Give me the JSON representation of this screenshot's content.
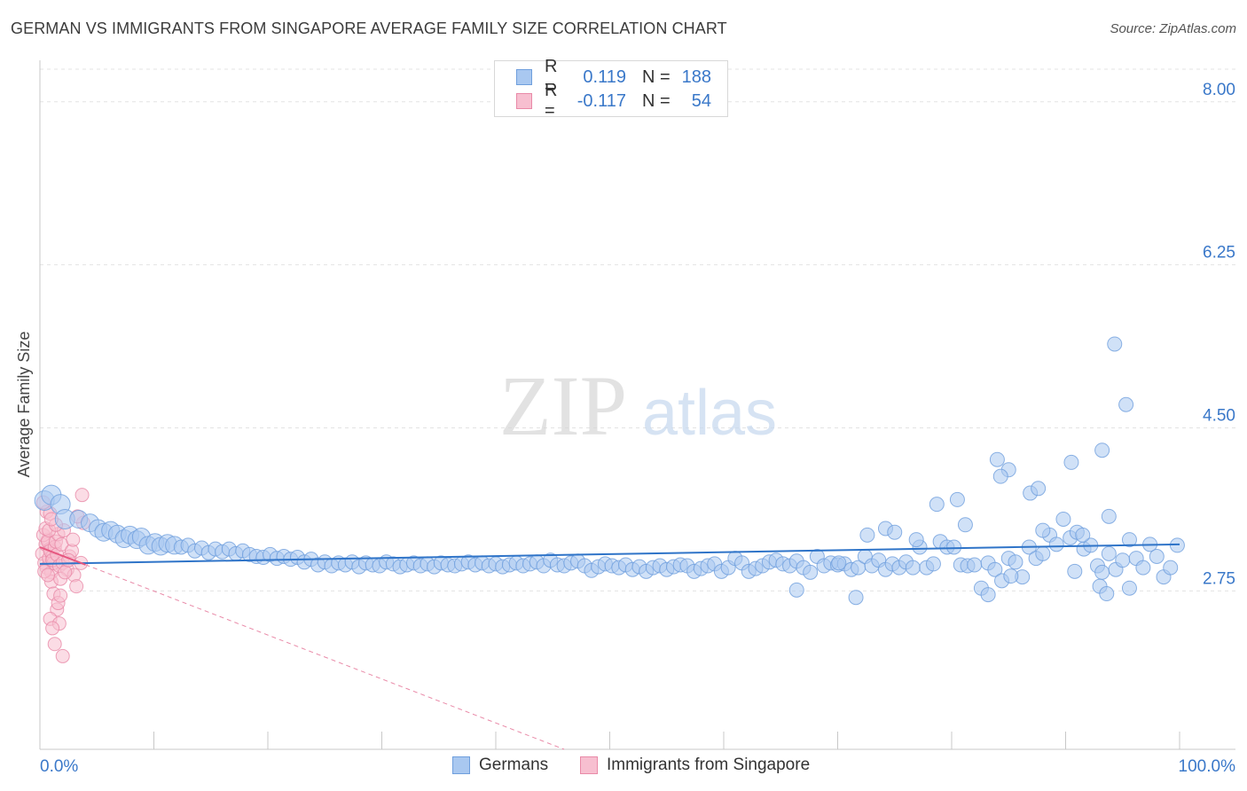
{
  "title": "GERMAN VS IMMIGRANTS FROM SINGAPORE AVERAGE FAMILY SIZE CORRELATION CHART",
  "source": "Source: ZipAtlas.com",
  "watermark": {
    "zip": "ZIP",
    "atlas": "atlas"
  },
  "legend": {
    "rows": [
      {
        "r_label": "R =",
        "r_value": "0.119",
        "n_label": "N =",
        "n_value": "188",
        "color": "#a9c8f0",
        "border": "#6f9fdd"
      },
      {
        "r_label": "R =",
        "r_value": "-0.117",
        "n_label": "N =",
        "n_value": "54",
        "color": "#f7bfd0",
        "border": "#e98aa8"
      }
    ]
  },
  "bottom_legend": [
    {
      "label": "Germans",
      "color": "#a9c8f0",
      "border": "#6f9fdd"
    },
    {
      "label": "Immigrants from Singapore",
      "color": "#f7bfd0",
      "border": "#e98aa8"
    }
  ],
  "chart_data": {
    "type": "scatter",
    "title": "GERMAN VS IMMIGRANTS FROM SINGAPORE AVERAGE FAMILY SIZE CORRELATION CHART",
    "xlabel": "",
    "ylabel": "Average Family Size",
    "xlim": [
      0,
      100
    ],
    "ylim": [
      1.05,
      8.35
    ],
    "x_tick_labels": [
      "0.0%",
      "100.0%"
    ],
    "y_ticks": [
      2.75,
      4.5,
      6.25,
      8.0
    ],
    "y_tick_labels": [
      "2.75",
      "4.50",
      "6.25",
      "8.00"
    ],
    "grid": true,
    "series": [
      {
        "name": "Germans",
        "color": "#6f9fdd",
        "fill": "#a9c8f0",
        "trend": {
          "x": [
            0,
            100
          ],
          "y": [
            3.04,
            3.25
          ]
        },
        "points": [
          [
            0.4,
            3.72
          ],
          [
            1.0,
            3.78
          ],
          [
            1.8,
            3.68
          ],
          [
            2.2,
            3.52
          ],
          [
            3.4,
            3.52
          ],
          [
            4.4,
            3.48
          ],
          [
            5.1,
            3.42
          ],
          [
            5.6,
            3.38
          ],
          [
            6.2,
            3.4
          ],
          [
            6.8,
            3.36
          ],
          [
            7.4,
            3.31
          ],
          [
            7.9,
            3.35
          ],
          [
            8.5,
            3.3
          ],
          [
            8.9,
            3.33
          ],
          [
            9.5,
            3.24
          ],
          [
            10.1,
            3.27
          ],
          [
            10.6,
            3.23
          ],
          [
            11.2,
            3.26
          ],
          [
            11.8,
            3.24
          ],
          [
            12.4,
            3.22
          ],
          [
            13.0,
            3.24
          ],
          [
            13.6,
            3.18
          ],
          [
            14.2,
            3.21
          ],
          [
            14.8,
            3.16
          ],
          [
            15.4,
            3.2
          ],
          [
            16.0,
            3.17
          ],
          [
            16.6,
            3.2
          ],
          [
            17.2,
            3.15
          ],
          [
            17.8,
            3.18
          ],
          [
            18.4,
            3.14
          ],
          [
            19.0,
            3.12
          ],
          [
            19.6,
            3.11
          ],
          [
            20.2,
            3.14
          ],
          [
            20.8,
            3.1
          ],
          [
            21.4,
            3.12
          ],
          [
            22.0,
            3.09
          ],
          [
            22.6,
            3.11
          ],
          [
            23.2,
            3.06
          ],
          [
            23.8,
            3.09
          ],
          [
            24.4,
            3.03
          ],
          [
            25.0,
            3.06
          ],
          [
            25.6,
            3.02
          ],
          [
            26.2,
            3.05
          ],
          [
            26.8,
            3.03
          ],
          [
            27.4,
            3.06
          ],
          [
            28.0,
            3.01
          ],
          [
            28.6,
            3.05
          ],
          [
            29.2,
            3.03
          ],
          [
            29.8,
            3.02
          ],
          [
            30.4,
            3.06
          ],
          [
            31.0,
            3.04
          ],
          [
            31.6,
            3.01
          ],
          [
            32.2,
            3.03
          ],
          [
            32.8,
            3.05
          ],
          [
            33.4,
            3.02
          ],
          [
            34.0,
            3.04
          ],
          [
            34.6,
            3.01
          ],
          [
            35.2,
            3.05
          ],
          [
            35.8,
            3.03
          ],
          [
            36.4,
            3.02
          ],
          [
            37.0,
            3.04
          ],
          [
            37.6,
            3.06
          ],
          [
            38.2,
            3.03
          ],
          [
            38.8,
            3.05
          ],
          [
            39.4,
            3.02
          ],
          [
            40.0,
            3.04
          ],
          [
            40.6,
            3.01
          ],
          [
            41.2,
            3.03
          ],
          [
            41.8,
            3.05
          ],
          [
            42.4,
            3.02
          ],
          [
            43.0,
            3.04
          ],
          [
            43.6,
            3.06
          ],
          [
            44.2,
            3.02
          ],
          [
            44.8,
            3.08
          ],
          [
            45.4,
            3.03
          ],
          [
            46.0,
            3.02
          ],
          [
            46.6,
            3.05
          ],
          [
            47.2,
            3.07
          ],
          [
            47.8,
            3.02
          ],
          [
            48.4,
            2.97
          ],
          [
            49.0,
            3.01
          ],
          [
            49.6,
            3.04
          ],
          [
            50.2,
            3.02
          ],
          [
            50.8,
            3.0
          ],
          [
            51.4,
            3.03
          ],
          [
            52.0,
            2.98
          ],
          [
            52.6,
            3.01
          ],
          [
            53.2,
            2.96
          ],
          [
            53.8,
            3.0
          ],
          [
            54.4,
            3.02
          ],
          [
            55.0,
            2.98
          ],
          [
            55.6,
            3.01
          ],
          [
            56.2,
            3.03
          ],
          [
            56.8,
            3.02
          ],
          [
            57.4,
            2.96
          ],
          [
            58.0,
            2.99
          ],
          [
            58.6,
            3.02
          ],
          [
            59.2,
            3.04
          ],
          [
            59.8,
            2.96
          ],
          [
            60.4,
            3.0
          ],
          [
            61.0,
            3.1
          ],
          [
            61.6,
            3.05
          ],
          [
            62.2,
            2.96
          ],
          [
            62.8,
            2.99
          ],
          [
            63.4,
            3.02
          ],
          [
            64.0,
            3.06
          ],
          [
            64.6,
            3.08
          ],
          [
            65.2,
            3.04
          ],
          [
            65.8,
            3.02
          ],
          [
            66.4,
            3.07
          ],
          [
            67.0,
            3.0
          ],
          [
            67.6,
            2.95
          ],
          [
            68.2,
            3.12
          ],
          [
            68.8,
            3.02
          ],
          [
            69.4,
            3.05
          ],
          [
            70.0,
            3.03
          ],
          [
            70.6,
            3.04
          ],
          [
            71.2,
            2.98
          ],
          [
            71.8,
            3.0
          ],
          [
            72.4,
            3.12
          ],
          [
            73.0,
            3.02
          ],
          [
            73.6,
            3.08
          ],
          [
            74.2,
            2.98
          ],
          [
            74.8,
            3.04
          ],
          [
            75.4,
            3.0
          ],
          [
            76.0,
            3.06
          ],
          [
            76.6,
            3.0
          ],
          [
            77.2,
            3.22
          ],
          [
            77.8,
            3.0
          ],
          [
            78.4,
            3.04
          ],
          [
            79.0,
            3.28
          ],
          [
            79.6,
            3.22
          ],
          [
            80.2,
            3.22
          ],
          [
            80.8,
            3.03
          ],
          [
            81.4,
            3.02
          ],
          [
            82.0,
            3.03
          ],
          [
            82.6,
            2.78
          ],
          [
            83.2,
            3.05
          ],
          [
            83.8,
            2.98
          ],
          [
            84.4,
            2.86
          ],
          [
            85.0,
            3.1
          ],
          [
            85.6,
            3.06
          ],
          [
            86.2,
            2.9
          ],
          [
            86.8,
            3.22
          ],
          [
            87.4,
            3.1
          ],
          [
            88.0,
            3.15
          ],
          [
            88.6,
            3.35
          ],
          [
            89.2,
            3.25
          ],
          [
            89.8,
            3.52
          ],
          [
            90.4,
            3.32
          ],
          [
            91.0,
            3.38
          ],
          [
            91.6,
            3.2
          ],
          [
            92.2,
            3.24
          ],
          [
            92.8,
            3.02
          ],
          [
            93.2,
            2.95
          ],
          [
            93.8,
            3.15
          ],
          [
            94.4,
            2.98
          ],
          [
            95.0,
            3.08
          ],
          [
            95.6,
            3.3
          ],
          [
            96.2,
            3.1
          ],
          [
            96.8,
            3.0
          ],
          [
            97.4,
            3.25
          ],
          [
            98.0,
            3.12
          ],
          [
            98.6,
            2.9
          ],
          [
            99.2,
            3.0
          ],
          [
            99.8,
            3.24
          ],
          [
            66.4,
            2.76
          ],
          [
            71.6,
            2.68
          ],
          [
            76.9,
            3.3
          ],
          [
            81.2,
            3.46
          ],
          [
            88.0,
            3.4
          ],
          [
            90.8,
            2.96
          ],
          [
            91.5,
            3.35
          ],
          [
            93.0,
            2.8
          ],
          [
            93.6,
            2.72
          ],
          [
            95.6,
            2.78
          ],
          [
            70.1,
            3.05
          ],
          [
            72.6,
            3.35
          ],
          [
            74.2,
            3.42
          ],
          [
            75.0,
            3.38
          ],
          [
            78.7,
            3.68
          ],
          [
            80.5,
            3.73
          ],
          [
            84.0,
            4.16
          ],
          [
            85.0,
            4.05
          ],
          [
            86.9,
            3.8
          ],
          [
            90.5,
            4.13
          ],
          [
            93.2,
            4.26
          ],
          [
            94.3,
            5.4
          ],
          [
            95.3,
            4.75
          ],
          [
            93.8,
            3.55
          ],
          [
            85.2,
            2.91
          ],
          [
            87.6,
            3.85
          ],
          [
            84.3,
            3.98
          ],
          [
            83.2,
            2.71
          ]
        ]
      },
      {
        "name": "Immigrants from Singapore",
        "color": "#e98aa8",
        "fill": "#f7bfd0",
        "trend": {
          "x": [
            0,
            46
          ],
          "y": [
            3.22,
            1.05
          ]
        },
        "points": [
          [
            0.2,
            3.15
          ],
          [
            0.4,
            3.05
          ],
          [
            0.5,
            3.25
          ],
          [
            0.6,
            3.0
          ],
          [
            0.7,
            3.3
          ],
          [
            0.8,
            3.1
          ],
          [
            0.9,
            3.2
          ],
          [
            1.0,
            2.95
          ],
          [
            1.1,
            3.12
          ],
          [
            1.2,
            3.05
          ],
          [
            0.3,
            3.35
          ],
          [
            0.5,
            3.42
          ],
          [
            0.7,
            3.28
          ],
          [
            0.9,
            3.18
          ],
          [
            1.1,
            3.08
          ],
          [
            1.3,
            3.22
          ],
          [
            1.5,
            3.14
          ],
          [
            1.7,
            3.02
          ],
          [
            1.4,
            3.28
          ],
          [
            1.6,
            3.36
          ],
          [
            0.6,
            3.6
          ],
          [
            0.9,
            3.58
          ],
          [
            2.0,
            3.05
          ],
          [
            2.4,
            2.98
          ],
          [
            3.0,
            2.92
          ],
          [
            1.0,
            2.85
          ],
          [
            1.2,
            2.72
          ],
          [
            1.5,
            2.55
          ],
          [
            0.9,
            2.45
          ],
          [
            1.7,
            2.4
          ],
          [
            1.1,
            2.35
          ],
          [
            1.3,
            2.18
          ],
          [
            2.0,
            2.05
          ],
          [
            3.2,
            2.8
          ],
          [
            3.6,
            3.05
          ],
          [
            3.8,
            3.48
          ],
          [
            3.7,
            3.78
          ],
          [
            1.8,
            2.88
          ],
          [
            2.2,
            2.95
          ],
          [
            2.6,
            3.12
          ],
          [
            0.4,
            2.96
          ],
          [
            0.8,
            3.4
          ],
          [
            1.9,
            3.25
          ],
          [
            2.8,
            3.18
          ],
          [
            3.3,
            3.55
          ],
          [
            1.6,
            2.62
          ],
          [
            2.1,
            3.4
          ],
          [
            0.7,
            2.92
          ],
          [
            1.4,
            3.46
          ],
          [
            2.5,
            3.08
          ],
          [
            0.3,
            3.7
          ],
          [
            1.0,
            3.52
          ],
          [
            2.9,
            3.3
          ],
          [
            1.8,
            2.7
          ]
        ]
      }
    ]
  }
}
